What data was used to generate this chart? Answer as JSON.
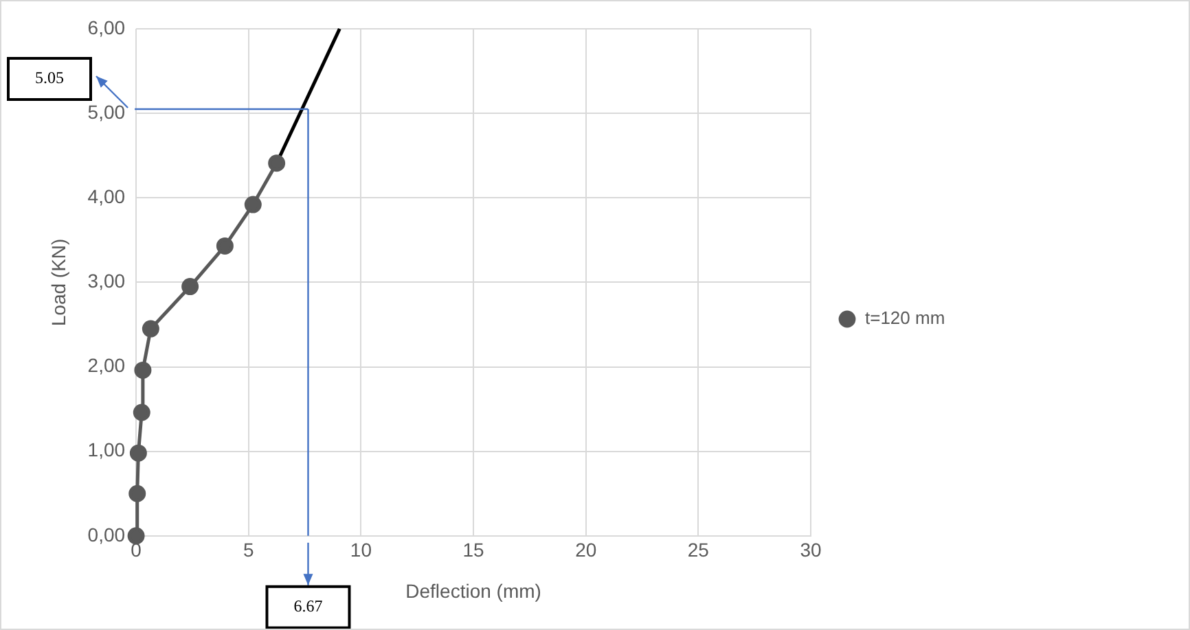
{
  "chart_data": {
    "type": "line",
    "xlabel": "Deflection (mm)",
    "ylabel": "Load (KN)",
    "xlim": [
      0,
      30
    ],
    "xticks": [
      0,
      5,
      10,
      15,
      20,
      25,
      30
    ],
    "ylim": [
      0,
      6
    ],
    "yticks": [
      {
        "value": 0,
        "label": "0,00"
      },
      {
        "value": 1,
        "label": "1,00"
      },
      {
        "value": 2,
        "label": "2,00"
      },
      {
        "value": 3,
        "label": "3,00"
      },
      {
        "value": 4,
        "label": "4,00"
      },
      {
        "value": 5,
        "label": "5,00"
      },
      {
        "value": 6,
        "label": "6,00"
      }
    ],
    "grid": true,
    "legend": "right",
    "series": [
      {
        "name": "t=120 mm",
        "color": "#595959",
        "marker": "circle",
        "x": [
          0,
          0.05,
          0.1,
          0.25,
          0.3,
          0.65,
          2.4,
          3.95,
          5.2,
          6.25
        ],
        "values": [
          0,
          0.5,
          0.98,
          1.46,
          1.96,
          2.45,
          2.95,
          3.43,
          3.92,
          4.41
        ]
      },
      {
        "color": "#000000",
        "marker": "none",
        "x": [
          6.25,
          9.05
        ],
        "values": [
          4.41,
          6.0
        ]
      }
    ],
    "ref_lines": [
      {
        "axis": "y",
        "value": 5.05,
        "color": "#4472c4"
      },
      {
        "axis": "x",
        "value": 7.65,
        "color": "#4472c4"
      }
    ],
    "annotations": [
      "5.05",
      "6.67"
    ]
  }
}
